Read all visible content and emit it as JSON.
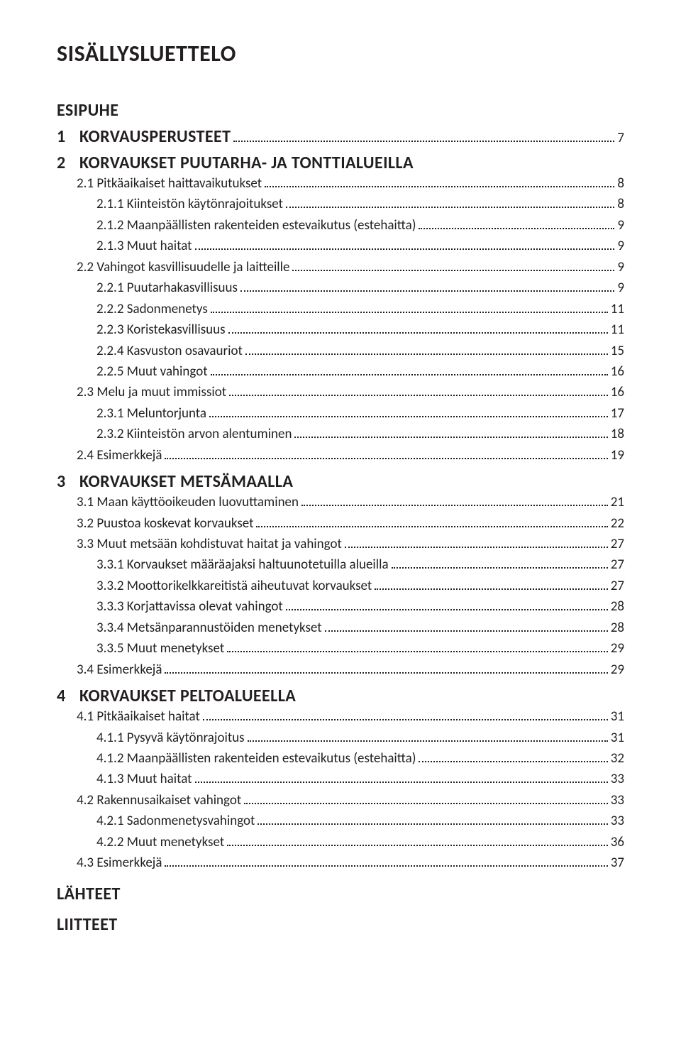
{
  "title": "SISÄLLYSLUETTELO",
  "front": [
    {
      "num": "",
      "label": "ESIPUHE"
    }
  ],
  "chapters": [
    {
      "num": "1",
      "label": "KORVAUSPERUSTEET",
      "page": "7",
      "items": []
    },
    {
      "num": "2",
      "label": "KORVAUKSET PUUTARHA- JA TONTTIALUEILLA",
      "page": "",
      "items": [
        {
          "indent": 1,
          "label": "2.1 Pitkäaikaiset haittavaikutukset",
          "page": "8"
        },
        {
          "indent": 2,
          "label": "2.1.1 Kiinteistön käytönrajoitukset",
          "page": "8"
        },
        {
          "indent": 2,
          "label": "2.1.2 Maanpäällisten rakenteiden estevaikutus (estehaitta)",
          "page": "9"
        },
        {
          "indent": 2,
          "label": "2.1.3 Muut haitat",
          "page": "9"
        },
        {
          "indent": 1,
          "label": "2.2 Vahingot kasvillisuudelle ja laitteille",
          "page": "9"
        },
        {
          "indent": 2,
          "label": "2.2.1 Puutarhakasvillisuus",
          "page": "9"
        },
        {
          "indent": 2,
          "label": "2.2.2 Sadonmenetys",
          "page": "11"
        },
        {
          "indent": 2,
          "label": "2.2.3 Koristekasvillisuus",
          "page": "11"
        },
        {
          "indent": 2,
          "label": "2.2.4 Kasvuston osavauriot",
          "page": "15"
        },
        {
          "indent": 2,
          "label": "2.2.5 Muut vahingot",
          "page": "16"
        },
        {
          "indent": 1,
          "label": "2.3 Melu ja muut immissiot",
          "page": "16"
        },
        {
          "indent": 2,
          "label": "2.3.1 Meluntorjunta",
          "page": "17"
        },
        {
          "indent": 2,
          "label": "2.3.2 Kiinteistön arvon alentuminen",
          "page": "18"
        },
        {
          "indent": 1,
          "label": "2.4 Esimerkkejä",
          "page": "19"
        }
      ]
    },
    {
      "num": "3",
      "label": "KORVAUKSET METSÄMAALLA",
      "page": "",
      "items": [
        {
          "indent": 1,
          "label": "3.1 Maan käyttöoikeuden luovuttaminen",
          "page": "21"
        },
        {
          "indent": 1,
          "label": "3.2 Puustoa koskevat korvaukset",
          "page": "22"
        },
        {
          "indent": 1,
          "label": "3.3 Muut metsään kohdistuvat haitat ja vahingot",
          "page": "27"
        },
        {
          "indent": 2,
          "label": "3.3.1 Korvaukset määräajaksi haltuunotetuilla alueilla",
          "page": "27"
        },
        {
          "indent": 2,
          "label": "3.3.2 Moottorikelkkareitistä aiheutuvat korvaukset",
          "page": "27"
        },
        {
          "indent": 2,
          "label": "3.3.3 Korjattavissa olevat vahingot",
          "page": "28"
        },
        {
          "indent": 2,
          "label": "3.3.4 Metsänparannustöiden menetykset",
          "page": "28"
        },
        {
          "indent": 2,
          "label": "3.3.5 Muut menetykset",
          "page": "29"
        },
        {
          "indent": 1,
          "label": "3.4 Esimerkkejä",
          "page": "29"
        }
      ]
    },
    {
      "num": "4",
      "label": "KORVAUKSET PELTOALUEELLA",
      "page": "",
      "items": [
        {
          "indent": 1,
          "label": "4.1 Pitkäaikaiset haitat",
          "page": "31"
        },
        {
          "indent": 2,
          "label": "4.1.1 Pysyvä käytönrajoitus",
          "page": "31"
        },
        {
          "indent": 2,
          "label": "4.1.2 Maanpäällisten rakenteiden estevaikutus (estehaitta)",
          "page": "32"
        },
        {
          "indent": 2,
          "label": "4.1.3 Muut haitat",
          "page": "33"
        },
        {
          "indent": 1,
          "label": "4.2 Rakennusaikaiset vahingot",
          "page": "33"
        },
        {
          "indent": 2,
          "label": "4.2.1 Sadonmenetysvahingot",
          "page": "33"
        },
        {
          "indent": 2,
          "label": "4.2.2 Muut menetykset",
          "page": "36"
        },
        {
          "indent": 1,
          "label": "4.3 Esimerkkejä",
          "page": "37"
        }
      ]
    }
  ],
  "back": [
    {
      "label": "LÄHTEET"
    },
    {
      "label": "LIITTEET"
    }
  ]
}
